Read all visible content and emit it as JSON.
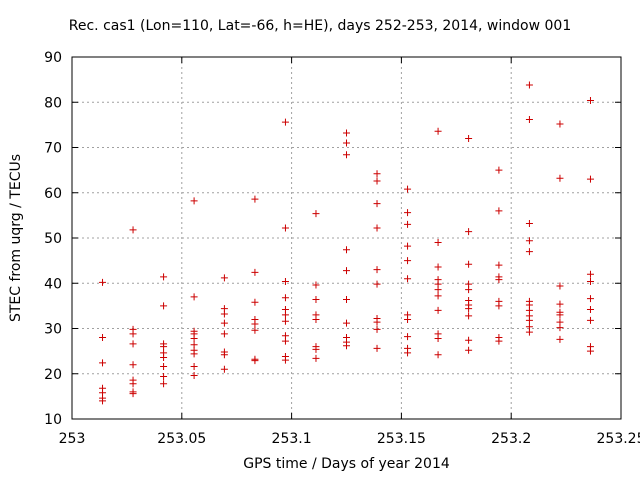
{
  "colors": {
    "marker": "#cc0000",
    "grid": "#a0a0a0",
    "axis": "#000000"
  },
  "chart_data": {
    "type": "scatter",
    "title": "Rec. cas1 (Lon=110, Lat=-66, h=HE), days 252-253, 2014, window 001",
    "xlabel": "GPS time / Days of year 2014",
    "ylabel": "STEC from uqrg / TECUs",
    "xlim": [
      253,
      253.25
    ],
    "ylim": [
      10,
      90
    ],
    "xticks": [
      253,
      253.05,
      253.1,
      253.15,
      253.2,
      253.25
    ],
    "xtick_labels": [
      "253",
      "253.05",
      "253.1",
      "253.15",
      "253.2",
      "253.25"
    ],
    "yticks": [
      10,
      20,
      30,
      40,
      50,
      60,
      70,
      80,
      90
    ],
    "ytick_labels": [
      "10",
      "20",
      "30",
      "40",
      "50",
      "60",
      "70",
      "80",
      "90"
    ],
    "grid": true,
    "marker": "+",
    "series": [
      {
        "x": 253.0139,
        "y": [
          40.2,
          28.0,
          22.4,
          16.8,
          15.8,
          14.6,
          14.0
        ]
      },
      {
        "x": 253.0278,
        "y": [
          51.8,
          29.8,
          28.8,
          26.6,
          22.0,
          18.6,
          17.8,
          16.0,
          15.6
        ]
      },
      {
        "x": 253.0417,
        "y": [
          41.4,
          35.0,
          26.6,
          26.0,
          24.6,
          23.6,
          21.6,
          19.4,
          17.8
        ]
      },
      {
        "x": 253.0556,
        "y": [
          58.2,
          37.0,
          29.4,
          28.8,
          27.8,
          26.4,
          25.2,
          24.4,
          21.6,
          19.6
        ]
      },
      {
        "x": 253.0694,
        "y": [
          41.2,
          34.4,
          33.2,
          31.2,
          28.8,
          24.8,
          24.2,
          21.0
        ]
      },
      {
        "x": 253.0833,
        "y": [
          58.6,
          42.4,
          35.8,
          32.0,
          31.0,
          29.6,
          23.2,
          22.9
        ]
      },
      {
        "x": 253.0972,
        "y": [
          75.6,
          52.2,
          40.4,
          36.8,
          34.2,
          33.0,
          31.6,
          28.4,
          27.2,
          23.8,
          23.0
        ]
      },
      {
        "x": 253.1111,
        "y": [
          55.4,
          39.6,
          36.4,
          33.0,
          32.0,
          26.0,
          25.4,
          23.4
        ]
      },
      {
        "x": 253.125,
        "y": [
          73.2,
          71.0,
          68.4,
          47.4,
          42.8,
          36.4,
          31.2,
          28.0,
          27.0,
          26.2
        ]
      },
      {
        "x": 253.1389,
        "y": [
          64.2,
          62.6,
          57.6,
          52.2,
          43.0,
          39.8,
          32.2,
          31.4,
          29.8,
          25.6
        ]
      },
      {
        "x": 253.1528,
        "y": [
          60.8,
          55.6,
          53.0,
          48.2,
          45.0,
          41.0,
          33.0,
          32.0,
          28.2,
          25.6,
          24.6
        ]
      },
      {
        "x": 253.1667,
        "y": [
          73.6,
          49.0,
          43.6,
          40.8,
          39.8,
          38.6,
          37.2,
          34.0,
          28.8,
          27.8,
          24.2
        ]
      },
      {
        "x": 253.1806,
        "y": [
          72.0,
          51.4,
          44.2,
          39.8,
          38.6,
          36.2,
          35.2,
          34.4,
          32.8,
          27.4,
          25.2
        ]
      },
      {
        "x": 253.1944,
        "y": [
          65.0,
          56.0,
          44.0,
          41.4,
          40.8,
          36.0,
          35.0,
          28.0,
          27.2
        ]
      },
      {
        "x": 253.2083,
        "y": [
          83.8,
          76.2,
          53.2,
          49.4,
          47.0,
          36.0,
          35.2,
          34.0,
          32.8,
          31.8,
          30.4,
          29.2
        ]
      },
      {
        "x": 253.2222,
        "y": [
          75.2,
          63.2,
          39.4,
          35.4,
          33.6,
          33.0,
          31.4,
          30.2,
          27.6
        ]
      },
      {
        "x": 253.2361,
        "y": [
          80.4,
          63.0,
          42.0,
          40.4,
          36.6,
          34.2,
          31.8,
          26.0,
          25.0
        ]
      }
    ]
  }
}
